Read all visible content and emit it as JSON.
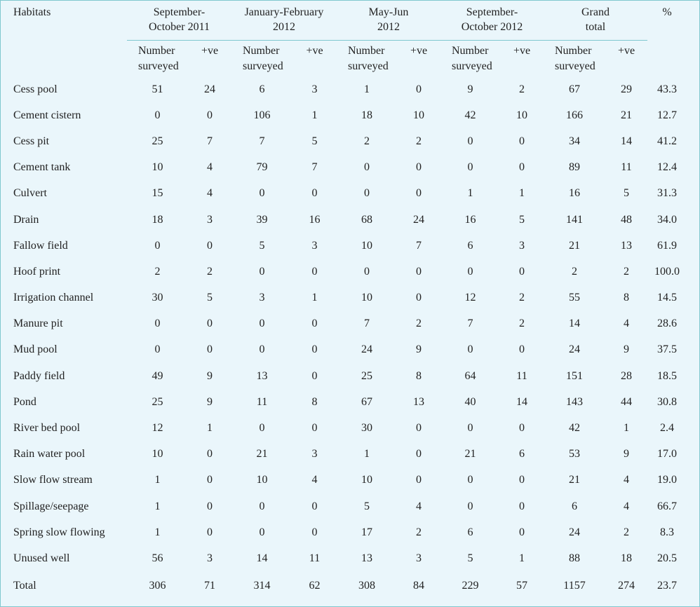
{
  "headers": {
    "habitats": "Habitats",
    "groups": [
      {
        "line1": "September-",
        "line2": "October 2011"
      },
      {
        "line1": "January-February",
        "line2": "2012"
      },
      {
        "line1": "May-Jun",
        "line2": "2012"
      },
      {
        "line1": "September-",
        "line2": "October 2012"
      },
      {
        "line1": "Grand",
        "line2": "total"
      }
    ],
    "percent": "%",
    "sub_number_line1": "Number",
    "sub_number_line2": "surveyed",
    "sub_positive": "+ve"
  },
  "rows": [
    {
      "habitat": "Cess pool",
      "v": [
        "51",
        "24",
        "6",
        "3",
        "1",
        "0",
        "9",
        "2",
        "67",
        "29",
        "43.3"
      ]
    },
    {
      "habitat": "Cement cistern",
      "v": [
        "0",
        "0",
        "106",
        "1",
        "18",
        "10",
        "42",
        "10",
        "166",
        "21",
        "12.7"
      ]
    },
    {
      "habitat": "Cess pit",
      "v": [
        "25",
        "7",
        "7",
        "5",
        "2",
        "2",
        "0",
        "0",
        "34",
        "14",
        "41.2"
      ]
    },
    {
      "habitat": "Cement tank",
      "v": [
        "10",
        "4",
        "79",
        "7",
        "0",
        "0",
        "0",
        "0",
        "89",
        "11",
        "12.4"
      ]
    },
    {
      "habitat": "Culvert",
      "v": [
        "15",
        "4",
        "0",
        "0",
        "0",
        "0",
        "1",
        "1",
        "16",
        "5",
        "31.3"
      ]
    },
    {
      "habitat": "Drain",
      "v": [
        "18",
        "3",
        "39",
        "16",
        "68",
        "24",
        "16",
        "5",
        "141",
        "48",
        "34.0"
      ]
    },
    {
      "habitat": "Fallow field",
      "v": [
        "0",
        "0",
        "5",
        "3",
        "10",
        "7",
        "6",
        "3",
        "21",
        "13",
        "61.9"
      ]
    },
    {
      "habitat": "Hoof print",
      "v": [
        "2",
        "2",
        "0",
        "0",
        "0",
        "0",
        "0",
        "0",
        "2",
        "2",
        "100.0"
      ]
    },
    {
      "habitat": "Irrigation channel",
      "v": [
        "30",
        "5",
        "3",
        "1",
        "10",
        "0",
        "12",
        "2",
        "55",
        "8",
        "14.5"
      ]
    },
    {
      "habitat": "Manure pit",
      "v": [
        "0",
        "0",
        "0",
        "0",
        "7",
        "2",
        "7",
        "2",
        "14",
        "4",
        "28.6"
      ]
    },
    {
      "habitat": "Mud pool",
      "v": [
        "0",
        "0",
        "0",
        "0",
        "24",
        "9",
        "0",
        "0",
        "24",
        "9",
        "37.5"
      ]
    },
    {
      "habitat": "Paddy field",
      "v": [
        "49",
        "9",
        "13",
        "0",
        "25",
        "8",
        "64",
        "11",
        "151",
        "28",
        "18.5"
      ]
    },
    {
      "habitat": "Pond",
      "v": [
        "25",
        "9",
        "11",
        "8",
        "67",
        "13",
        "40",
        "14",
        "143",
        "44",
        "30.8"
      ]
    },
    {
      "habitat": "River bed pool",
      "v": [
        "12",
        "1",
        "0",
        "0",
        "30",
        "0",
        "0",
        "0",
        "42",
        "1",
        "2.4"
      ]
    },
    {
      "habitat": "Rain water pool",
      "v": [
        "10",
        "0",
        "21",
        "3",
        "1",
        "0",
        "21",
        "6",
        "53",
        "9",
        "17.0"
      ]
    },
    {
      "habitat": "Slow flow stream",
      "v": [
        "1",
        "0",
        "10",
        "4",
        "10",
        "0",
        "0",
        "0",
        "21",
        "4",
        "19.0"
      ]
    },
    {
      "habitat": "Spillage/seepage",
      "v": [
        "1",
        "0",
        "0",
        "0",
        "5",
        "4",
        "0",
        "0",
        "6",
        "4",
        "66.7"
      ]
    },
    {
      "habitat": "Spring slow flowing",
      "v": [
        "1",
        "0",
        "0",
        "0",
        "17",
        "2",
        "6",
        "0",
        "24",
        "2",
        "8.3"
      ]
    },
    {
      "habitat": "Unused well",
      "v": [
        "56",
        "3",
        "14",
        "11",
        "13",
        "3",
        "5",
        "1",
        "88",
        "18",
        "20.5"
      ]
    }
  ],
  "total": {
    "habitat": "Total",
    "v": [
      "306",
      "71",
      "314",
      "62",
      "308",
      "84",
      "229",
      "57",
      "1157",
      "274",
      "23.7"
    ]
  },
  "colors": {
    "background": "#eaf6fb",
    "rule": "#7fc8cf",
    "text": "#222222"
  }
}
